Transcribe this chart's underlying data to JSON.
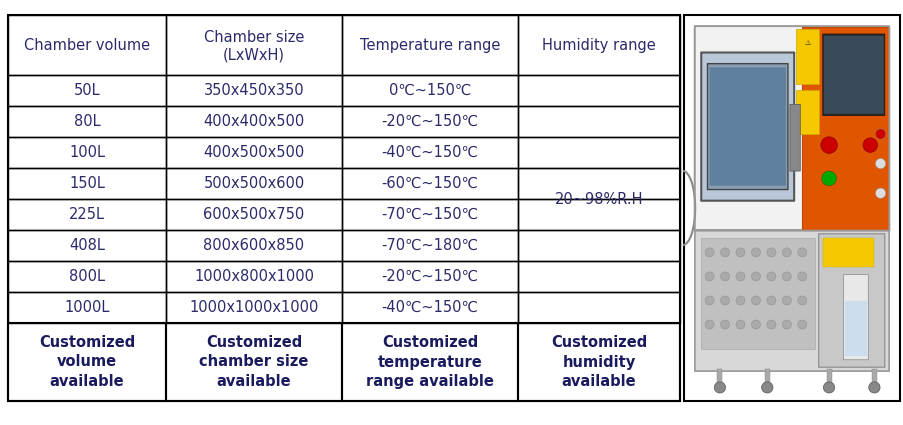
{
  "headers_line1": [
    "Chamber volume",
    "Chamber size",
    "Temperature range",
    "Humidity range"
  ],
  "headers_line2": [
    "",
    "(LxWxH)",
    "",
    ""
  ],
  "rows": [
    [
      "50L",
      "350x450x350",
      "0℃~150℃"
    ],
    [
      "80L",
      "400x400x500",
      "-20℃~150℃"
    ],
    [
      "100L",
      "400x500x500",
      "-40℃~150℃"
    ],
    [
      "150L",
      "500x500x600",
      "-60℃~150℃"
    ],
    [
      "225L",
      "600x500x750",
      "-70℃~150℃"
    ],
    [
      "408L",
      "800x600x850",
      "-70℃~180℃"
    ],
    [
      "800L",
      "1000x800x1000",
      "-20℃~150℃"
    ],
    [
      "1000L",
      "1000x1000x1000",
      "-40℃~150℃"
    ]
  ],
  "humidity_text": "20~98%R.H",
  "footer": [
    "Customized\nvolume\navailable",
    "Customized\nchamber size\navailable",
    "Customized\ntemperature\nrange available",
    "Customized\nhumidity\navailable"
  ],
  "background_color": "#ffffff",
  "border_color": "#000000",
  "text_color": "#2b2b6b",
  "bold_color": "#1a1a5e"
}
